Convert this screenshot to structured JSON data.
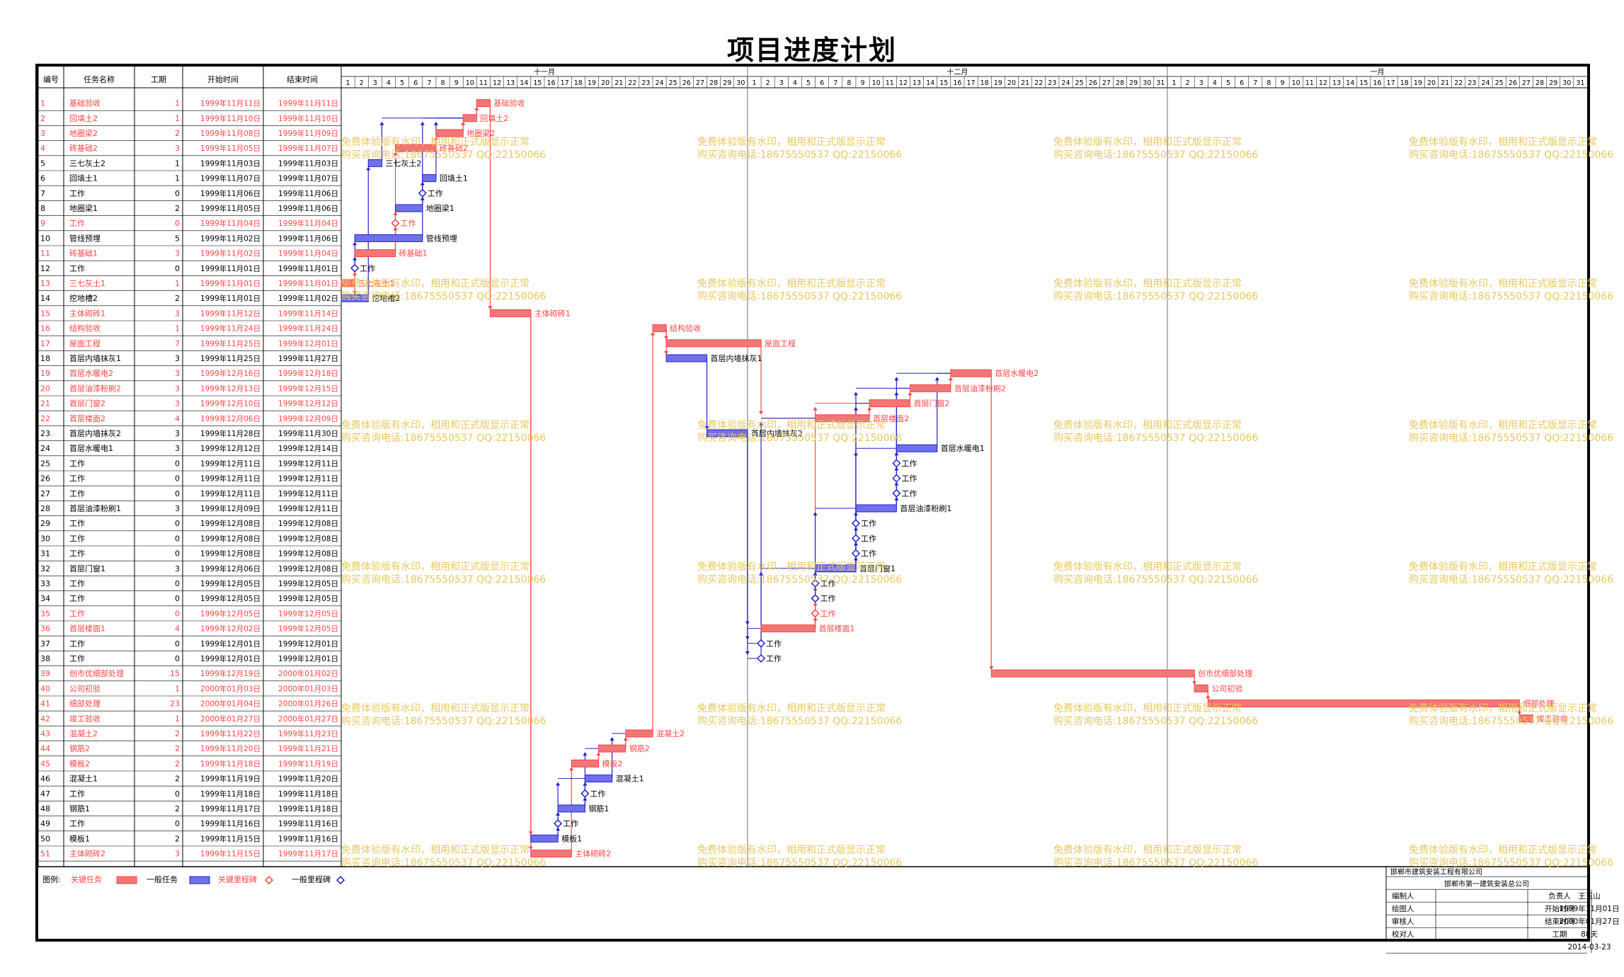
{
  "title": "项目进度计划",
  "headers": {
    "id": "编号",
    "name": "任务名称",
    "duration": "工期",
    "start": "开始时间",
    "end": "结束时间"
  },
  "months": [
    "十一月",
    "十二月",
    "一月"
  ],
  "month_days": [
    30,
    31,
    31
  ],
  "colors": {
    "critical": "#ff4444",
    "critical_fill": "#ee7777",
    "normal": "#2222cc",
    "normal_fill": "#7070ee"
  },
  "tasks": [
    {
      "id": "1",
      "name": "基础验收",
      "dur": "1",
      "start": "1999年11月11日",
      "end": "1999年11月11日",
      "crit": true,
      "label": "基础验收"
    },
    {
      "id": "2",
      "name": "回填土2",
      "dur": "1",
      "start": "1999年11月10日",
      "end": "1999年11月10日",
      "crit": true,
      "label": "回填土2"
    },
    {
      "id": "3",
      "name": "地圈梁2",
      "dur": "2",
      "start": "1999年11月08日",
      "end": "1999年11月09日",
      "crit": true,
      "label": "地圈梁2"
    },
    {
      "id": "4",
      "name": "砖基础2",
      "dur": "3",
      "start": "1999年11月05日",
      "end": "1999年11月07日",
      "crit": true,
      "label": "砖基础2"
    },
    {
      "id": "5",
      "name": "三七灰土2",
      "dur": "1",
      "start": "1999年11月03日",
      "end": "1999年11月03日",
      "crit": false,
      "label": "三七灰土2"
    },
    {
      "id": "6",
      "name": "回填土1",
      "dur": "1",
      "start": "1999年11月07日",
      "end": "1999年11月07日",
      "crit": false,
      "label": "回填土1"
    },
    {
      "id": "7",
      "name": "工作",
      "dur": "0",
      "start": "1999年11月06日",
      "end": "1999年11月06日",
      "crit": false,
      "label": "工作"
    },
    {
      "id": "8",
      "name": "地圈梁1",
      "dur": "2",
      "start": "1999年11月05日",
      "end": "1999年11月06日",
      "crit": false,
      "label": "地圈梁1"
    },
    {
      "id": "9",
      "name": "工作",
      "dur": "0",
      "start": "1999年11月04日",
      "end": "1999年11月04日",
      "crit": true,
      "label": "工作"
    },
    {
      "id": "10",
      "name": "管线预埋",
      "dur": "5",
      "start": "1999年11月02日",
      "end": "1999年11月06日",
      "crit": false,
      "label": "管线预埋"
    },
    {
      "id": "11",
      "name": "砖基础1",
      "dur": "3",
      "start": "1999年11月02日",
      "end": "1999年11月04日",
      "crit": true,
      "label": "砖基础1"
    },
    {
      "id": "12",
      "name": "工作",
      "dur": "0",
      "start": "1999年11月01日",
      "end": "1999年11月01日",
      "crit": false,
      "label": "工作"
    },
    {
      "id": "13",
      "name": "三七灰土1",
      "dur": "1",
      "start": "1999年11月01日",
      "end": "1999年11月01日",
      "crit": true,
      "label": "三七灰土1"
    },
    {
      "id": "14",
      "name": "挖地槽2",
      "dur": "2",
      "start": "1999年11月01日",
      "end": "1999年11月02日",
      "crit": false,
      "label": "挖地槽2"
    },
    {
      "id": "15",
      "name": "主体砌砖1",
      "dur": "3",
      "start": "1999年11月12日",
      "end": "1999年11月14日",
      "crit": true,
      "label": "主体砌砖1"
    },
    {
      "id": "16",
      "name": "结构验收",
      "dur": "1",
      "start": "1999年11月24日",
      "end": "1999年11月24日",
      "crit": true,
      "label": "结构验收"
    },
    {
      "id": "17",
      "name": "屋面工程",
      "dur": "7",
      "start": "1999年11月25日",
      "end": "1999年12月01日",
      "crit": true,
      "label": "屋面工程"
    },
    {
      "id": "18",
      "name": "首层内墙抹灰1",
      "dur": "3",
      "start": "1999年11月25日",
      "end": "1999年11月27日",
      "crit": false,
      "label": "首层内墙抹灰1"
    },
    {
      "id": "19",
      "name": "首层水暖电2",
      "dur": "3",
      "start": "1999年12月16日",
      "end": "1999年12月18日",
      "crit": true,
      "label": "首层水暖电2"
    },
    {
      "id": "20",
      "name": "首层油漆粉刷2",
      "dur": "3",
      "start": "1999年12月13日",
      "end": "1999年12月15日",
      "crit": true,
      "label": "首层油漆粉刷2"
    },
    {
      "id": "21",
      "name": "首层门窗2",
      "dur": "3",
      "start": "1999年12月10日",
      "end": "1999年12月12日",
      "crit": true,
      "label": "首层门窗2"
    },
    {
      "id": "22",
      "name": "首层楼面2",
      "dur": "4",
      "start": "1999年12月06日",
      "end": "1999年12月09日",
      "crit": true,
      "label": "首层楼面2"
    },
    {
      "id": "23",
      "name": "首层内墙抹灰2",
      "dur": "3",
      "start": "1999年11月28日",
      "end": "1999年11月30日",
      "crit": false,
      "label": "首层内墙抹灰2"
    },
    {
      "id": "24",
      "name": "首层水暖电1",
      "dur": "3",
      "start": "1999年12月12日",
      "end": "1999年12月14日",
      "crit": false,
      "label": "首层水暖电1"
    },
    {
      "id": "25",
      "name": "工作",
      "dur": "0",
      "start": "1999年12月11日",
      "end": "1999年12月11日",
      "crit": false,
      "label": "工作"
    },
    {
      "id": "26",
      "name": "工作",
      "dur": "0",
      "start": "1999年12月11日",
      "end": "1999年12月11日",
      "crit": false,
      "label": "工作"
    },
    {
      "id": "27",
      "name": "工作",
      "dur": "0",
      "start": "1999年12月11日",
      "end": "1999年12月11日",
      "crit": false,
      "label": "工作"
    },
    {
      "id": "28",
      "name": "首层油漆粉刷1",
      "dur": "3",
      "start": "1999年12月09日",
      "end": "1999年12月11日",
      "crit": false,
      "label": "首层油漆粉刷1"
    },
    {
      "id": "29",
      "name": "工作",
      "dur": "0",
      "start": "1999年12月08日",
      "end": "1999年12月08日",
      "crit": false,
      "label": "工作"
    },
    {
      "id": "30",
      "name": "工作",
      "dur": "0",
      "start": "1999年12月08日",
      "end": "1999年12月08日",
      "crit": false,
      "label": "工作"
    },
    {
      "id": "31",
      "name": "工作",
      "dur": "0",
      "start": "1999年12月08日",
      "end": "1999年12月08日",
      "crit": false,
      "label": "工作"
    },
    {
      "id": "32",
      "name": "首层门窗1",
      "dur": "3",
      "start": "1999年12月06日",
      "end": "1999年12月08日",
      "crit": false,
      "label": "首层门窗1"
    },
    {
      "id": "33",
      "name": "工作",
      "dur": "0",
      "start": "1999年12月05日",
      "end": "1999年12月05日",
      "crit": false,
      "label": "工作"
    },
    {
      "id": "34",
      "name": "工作",
      "dur": "0",
      "start": "1999年12月05日",
      "end": "1999年12月05日",
      "crit": false,
      "label": "工作"
    },
    {
      "id": "35",
      "name": "工作",
      "dur": "0",
      "start": "1999年12月05日",
      "end": "1999年12月05日",
      "crit": true,
      "label": "工作"
    },
    {
      "id": "36",
      "name": "首层楼面1",
      "dur": "4",
      "start": "1999年12月02日",
      "end": "1999年12月05日",
      "crit": true,
      "label": "首层楼面1"
    },
    {
      "id": "37",
      "name": "工作",
      "dur": "0",
      "start": "1999年12月01日",
      "end": "1999年12月01日",
      "crit": false,
      "label": "工作"
    },
    {
      "id": "38",
      "name": "工作",
      "dur": "0",
      "start": "1999年12月01日",
      "end": "1999年12月01日",
      "crit": false,
      "label": "工作"
    },
    {
      "id": "39",
      "name": "创市优细部处理",
      "dur": "15",
      "start": "1999年12月19日",
      "end": "2000年01月02日",
      "crit": true,
      "label": "创市优细部处理"
    },
    {
      "id": "40",
      "name": "公司初验",
      "dur": "1",
      "start": "2000年01月03日",
      "end": "2000年01月03日",
      "crit": true,
      "label": "公司初验"
    },
    {
      "id": "41",
      "name": "细部处理",
      "dur": "23",
      "start": "2000年01月04日",
      "end": "2000年01月26日",
      "crit": true,
      "label": "细部处理"
    },
    {
      "id": "42",
      "name": "竣工验收",
      "dur": "1",
      "start": "2000年01月27日",
      "end": "2000年01月27日",
      "crit": true,
      "label": "竣工验收"
    },
    {
      "id": "43",
      "name": "混凝土2",
      "dur": "2",
      "start": "1999年11月22日",
      "end": "1999年11月23日",
      "crit": true,
      "label": "混凝土2"
    },
    {
      "id": "44",
      "name": "钢筋2",
      "dur": "2",
      "start": "1999年11月20日",
      "end": "1999年11月21日",
      "crit": true,
      "label": "钢筋2"
    },
    {
      "id": "45",
      "name": "模板2",
      "dur": "2",
      "start": "1999年11月18日",
      "end": "1999年11月19日",
      "crit": true,
      "label": "模板2"
    },
    {
      "id": "46",
      "name": "混凝土1",
      "dur": "2",
      "start": "1999年11月19日",
      "end": "1999年11月20日",
      "crit": false,
      "label": "混凝土1"
    },
    {
      "id": "47",
      "name": "工作",
      "dur": "0",
      "start": "1999年11月18日",
      "end": "1999年11月18日",
      "crit": false,
      "label": "工作"
    },
    {
      "id": "48",
      "name": "钢筋1",
      "dur": "2",
      "start": "1999年11月17日",
      "end": "1999年11月18日",
      "crit": false,
      "label": "钢筋1"
    },
    {
      "id": "49",
      "name": "工作",
      "dur": "0",
      "start": "1999年11月16日",
      "end": "1999年11月16日",
      "crit": false,
      "label": "工作"
    },
    {
      "id": "50",
      "name": "模板1",
      "dur": "2",
      "start": "1999年11月15日",
      "end": "1999年11月16日",
      "crit": false,
      "label": "模板1"
    },
    {
      "id": "51",
      "name": "主体砌砖2",
      "dur": "3",
      "start": "1999年11月15日",
      "end": "1999年11月17日",
      "crit": true,
      "label": "主体砌砖2"
    }
  ],
  "links": [
    [
      13,
      14
    ],
    [
      13,
      12
    ],
    [
      12,
      11
    ],
    [
      12,
      10
    ],
    [
      14,
      5
    ],
    [
      11,
      9
    ],
    [
      11,
      4
    ],
    [
      9,
      8
    ],
    [
      8,
      7
    ],
    [
      7,
      6
    ],
    [
      10,
      2
    ],
    [
      5,
      2
    ],
    [
      6,
      2
    ],
    [
      4,
      3
    ],
    [
      3,
      2
    ],
    [
      2,
      1
    ],
    [
      1,
      15
    ],
    [
      15,
      51
    ],
    [
      15,
      50
    ],
    [
      50,
      49
    ],
    [
      50,
      48
    ],
    [
      51,
      45
    ],
    [
      49,
      46
    ],
    [
      48,
      47
    ],
    [
      48,
      44
    ],
    [
      45,
      44
    ],
    [
      47,
      46
    ],
    [
      44,
      43
    ],
    [
      46,
      43
    ],
    [
      43,
      16
    ],
    [
      16,
      17
    ],
    [
      16,
      18
    ],
    [
      18,
      23
    ],
    [
      23,
      38
    ],
    [
      23,
      37
    ],
    [
      23,
      36
    ],
    [
      17,
      22
    ],
    [
      38,
      32
    ],
    [
      37,
      22
    ],
    [
      36,
      35
    ],
    [
      36,
      34
    ],
    [
      36,
      33
    ],
    [
      35,
      21
    ],
    [
      34,
      28
    ],
    [
      33,
      32
    ],
    [
      32,
      31
    ],
    [
      32,
      30
    ],
    [
      32,
      29
    ],
    [
      32,
      21
    ],
    [
      31,
      20
    ],
    [
      30,
      24
    ],
    [
      29,
      28
    ],
    [
      22,
      21
    ],
    [
      28,
      27
    ],
    [
      28,
      26
    ],
    [
      28,
      25
    ],
    [
      27,
      19
    ],
    [
      25,
      24
    ],
    [
      26,
      20
    ],
    [
      21,
      20
    ],
    [
      20,
      19
    ],
    [
      24,
      19
    ],
    [
      19,
      39
    ],
    [
      39,
      40
    ],
    [
      40,
      41
    ],
    [
      41,
      42
    ]
  ],
  "legend": {
    "label": "图例:",
    "critical": "关键任务",
    "normal": "一般任务",
    "critical_ms": "关键里程碑",
    "normal_ms": "一般里程碑"
  },
  "info": {
    "company": "邯郸市建筑安装工程有限公司",
    "project": "邯郸市第一建筑安装总公司",
    "r1l": "编制人",
    "r1m": "负责人",
    "r1r": "王玉山",
    "r2l": "绘图人",
    "r2m": "开始时间",
    "r2r": "1999年11月01日",
    "r3l": "审核人",
    "r3m": "结束时间",
    "r3r": "2000年01月27日",
    "r4l": "校对人",
    "r4m": "工期",
    "r4r": "88天",
    "date": "2014-03-23"
  },
  "watermark": {
    "line1": "免费体验版有水印，相用和正式版显示正常",
    "line2": "购买咨询电话:18675550537 QQ:22150066"
  }
}
